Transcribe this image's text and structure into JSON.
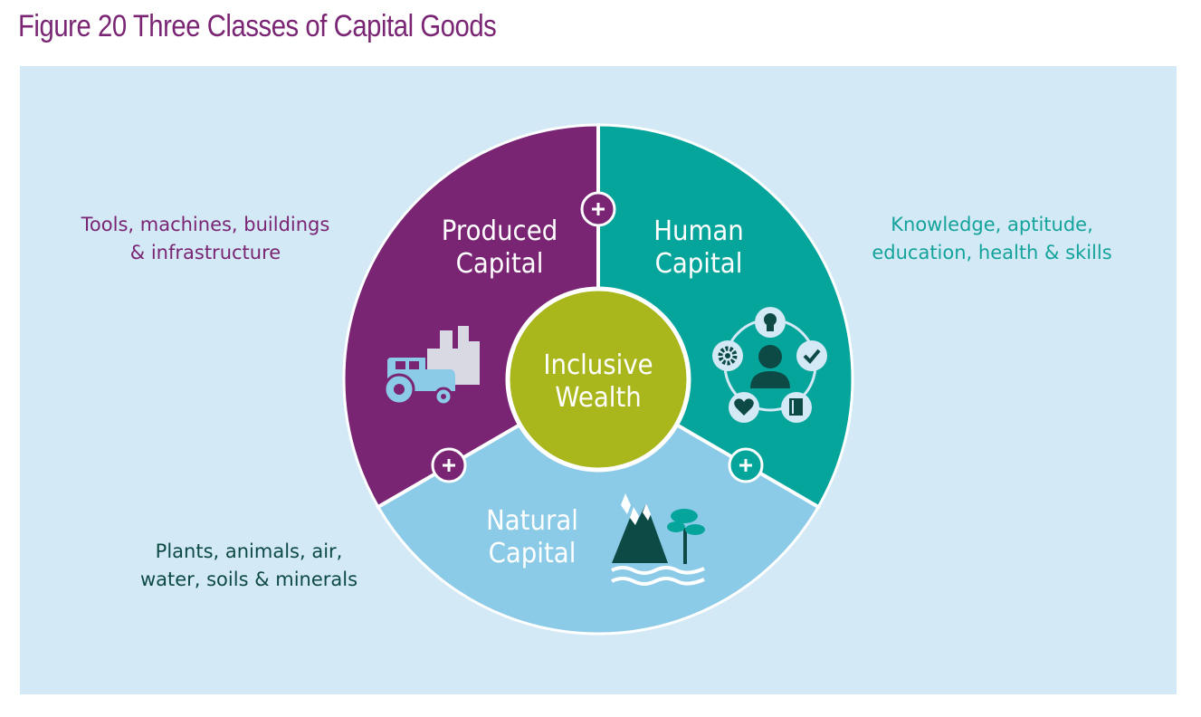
{
  "figure": {
    "title": "Figure 20 Three Classes of Capital Goods"
  },
  "diagram": {
    "center": {
      "label": "Inclusive\nWealth",
      "color": "#a9b71d"
    },
    "segments": [
      {
        "id": "produced",
        "label": "Produced\nCapital",
        "description": "Tools, machines, buildings\n& infrastructure",
        "color": "#7a2474",
        "icon": "tractor-factory-icon"
      },
      {
        "id": "human",
        "label": "Human\nCapital",
        "description": "Knowledge, aptitude,\neducation, health & skills",
        "color": "#06a59c",
        "icon": "person-skills-icon"
      },
      {
        "id": "natural",
        "label": "Natural\nCapital",
        "description": "Plants, animals, air,\nwater, soils & minerals",
        "color": "#8ccbe8",
        "icon": "mountain-tree-water-icon"
      }
    ],
    "connector_symbol": "+",
    "panel_color": "#d3e9f5"
  }
}
